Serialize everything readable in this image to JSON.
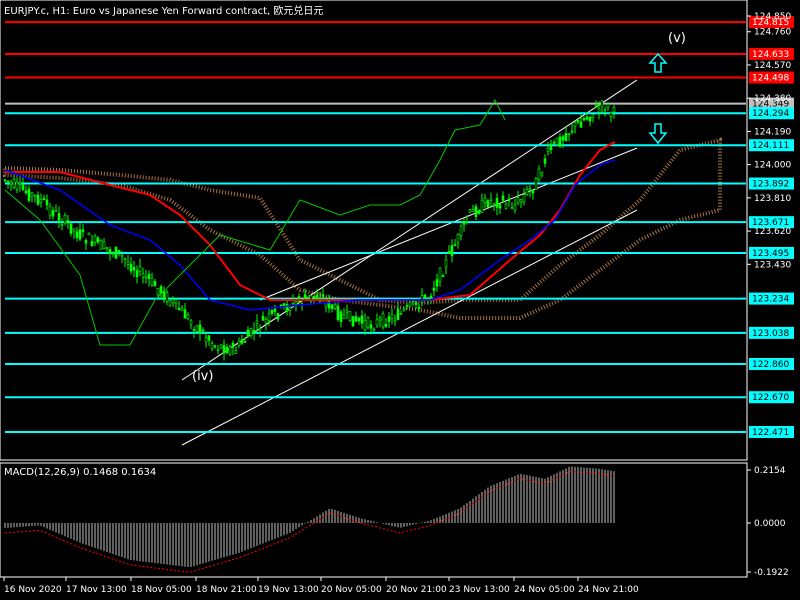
{
  "window": {
    "title": "EURJPY.c, H1:  Euro vs Japanese Yen Forward contract, 欧元兑日元"
  },
  "main": {
    "price_labels": [
      "124.850",
      "124.760",
      "124.570",
      "124.380",
      "124.190",
      "124.000",
      "123.810",
      "123.620",
      "123.430"
    ],
    "hlines": [
      {
        "price": "124.815",
        "color": "#ff0000"
      },
      {
        "price": "124.633",
        "color": "#ff0000"
      },
      {
        "price": "124.498",
        "color": "#ff0000"
      },
      {
        "price": "124.349",
        "color": "#c0c0c0"
      },
      {
        "price": "124.294",
        "color": "#00ffff"
      },
      {
        "price": "124.111",
        "color": "#00ffff"
      },
      {
        "price": "123.892",
        "color": "#00ffff"
      },
      {
        "price": "123.671",
        "color": "#00ffff"
      },
      {
        "price": "123.495",
        "color": "#00ffff"
      },
      {
        "price": "123.234",
        "color": "#00ffff"
      },
      {
        "price": "123.038",
        "color": "#00ffff"
      },
      {
        "price": "122.860",
        "color": "#00ffff"
      },
      {
        "price": "122.670",
        "color": "#00ffff"
      },
      {
        "price": "122.471",
        "color": "#00ffff"
      }
    ],
    "wave_labels": {
      "iv": "(iv)",
      "v": "(v)"
    },
    "colors": {
      "bull": "#00ff00",
      "channel": "#ffffff",
      "up_arrow": "#00ffff",
      "down_arrow": "#00ffff",
      "tenkan": "#ff0000",
      "kijun": "#0000ff",
      "chikou": "#00c800",
      "cloud": "#f4a460"
    }
  },
  "macd": {
    "label": "MACD(12,26,9) 0.1468 0.1634",
    "scale": [
      "0.2154",
      "0.0000",
      "-0.1922"
    ]
  },
  "time_axis": [
    "16 Nov 2020",
    "17 Nov 13:00",
    "18 Nov 05:00",
    "18 Nov 21:00",
    "19 Nov 13:00",
    "20 Nov 05:00",
    "20 Nov 21:00",
    "23 Nov 13:00",
    "24 Nov 05:00",
    "24 Nov 21:00"
  ]
}
